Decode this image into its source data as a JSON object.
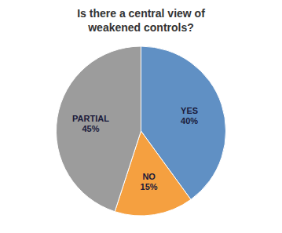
{
  "chart_data": {
    "type": "pie",
    "title": "Is there a central view of\nweakened controls?",
    "categories": [
      "YES",
      "NO",
      "PARTIAL"
    ],
    "values": [
      40,
      15,
      45
    ],
    "value_labels": [
      "40%",
      "15%",
      "45%"
    ],
    "data_labels": true,
    "colors": [
      "#6090C4",
      "#F5A040",
      "#9C9C9C"
    ]
  }
}
